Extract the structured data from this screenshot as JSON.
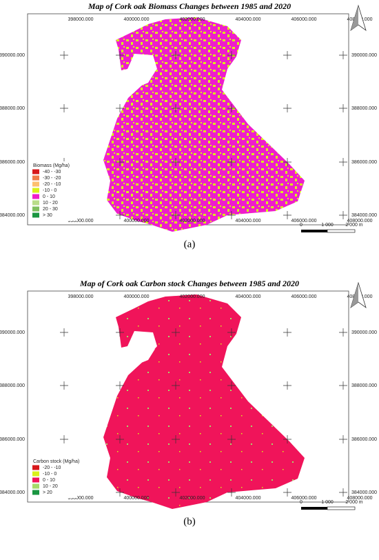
{
  "panels": [
    {
      "title": "Map of Cork oak Biomass Changes between 1985 and 2020",
      "x_labels": [
        "398000.000",
        "400000.000",
        "402000.000",
        "404000.000",
        "406000.000",
        "408000.000"
      ],
      "y_labels": [
        "390000.000",
        "388000.000",
        "386000.000",
        "384000.000"
      ],
      "legend": {
        "title": "Biomass (Mg/ha)",
        "items": [
          {
            "label": "-40 - -30",
            "color": "#d7191c"
          },
          {
            "label": "-30 - -20",
            "color": "#f07c4a"
          },
          {
            "label": "-20 - -10",
            "color": "#fdbf6f"
          },
          {
            "label": "-10 - 0",
            "color": "#d9f01a"
          },
          {
            "label": "0 - 10",
            "color": "#ee1ecb"
          },
          {
            "label": "10 - 20",
            "color": "#b9dc8a"
          },
          {
            "label": "20 - 30",
            "color": "#7fbf5f"
          },
          {
            "label": "> 30",
            "color": "#1a9641"
          }
        ]
      },
      "scale": [
        "0",
        "1 000",
        "2 000 m"
      ],
      "caption": "(a)"
    },
    {
      "title": "Map of Cork oak Carbon stock Changes between 1985 and 2020",
      "x_labels": [
        "398000.000",
        "400000.000",
        "402000.000",
        "404000.000",
        "406000.000",
        "408000.000"
      ],
      "y_labels": [
        "390000.000",
        "388000.000",
        "386000.000",
        "384000.000"
      ],
      "legend": {
        "title": "Carbon stock (Mg/ha)",
        "items": [
          {
            "label": "-20 - -10",
            "color": "#d7191c"
          },
          {
            "label": "-10 - 0",
            "color": "#d9f01a"
          },
          {
            "label": "0 - 10",
            "color": "#f0145a"
          },
          {
            "label": "10 - 20",
            "color": "#a6d96a"
          },
          {
            "label": "> 20",
            "color": "#1a9641"
          }
        ]
      },
      "scale": [
        "0",
        "1 000",
        "2 000 m"
      ],
      "caption": "(b)"
    }
  ]
}
